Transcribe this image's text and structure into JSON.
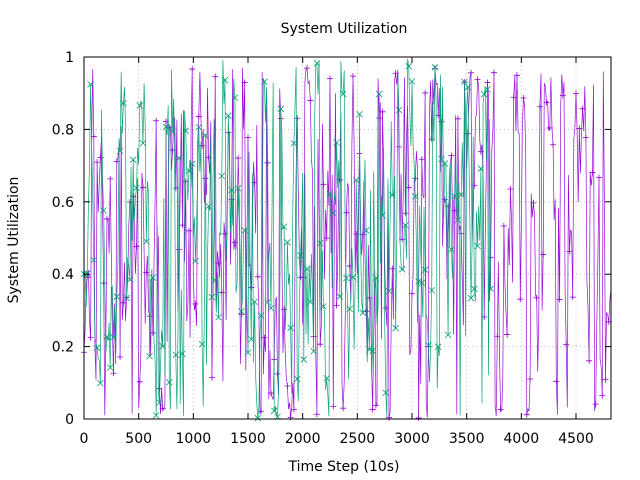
{
  "chart_data": {
    "type": "line",
    "title": "System Utilization",
    "xlabel": "Time Step (10s)",
    "ylabel": "System Utilization",
    "xlim": [
      0,
      4820
    ],
    "ylim": [
      0,
      1
    ],
    "x_ticks": [
      0,
      500,
      1000,
      1500,
      2000,
      2500,
      3000,
      3500,
      4000,
      4500
    ],
    "y_ticks": [
      0,
      0.2,
      0.4,
      0.6,
      0.8,
      1
    ],
    "x_tick_labels": [
      "0",
      "500",
      "1000",
      "1500",
      "2000",
      "2500",
      "3000",
      "3500",
      "4000",
      "4500"
    ],
    "y_tick_labels": [
      "0",
      "0.2",
      "0.4",
      "0.6",
      "0.8",
      "1"
    ],
    "grid": true,
    "legend": "none",
    "series": [
      {
        "color": "#9400D3",
        "marker": "+",
        "x_range": [
          0,
          4820
        ],
        "x_step": 10,
        "y_range_observed": [
          0,
          0.97
        ],
        "note_values": "dense noisy series; values oscillate rapidly between ~0.02 and ~0.95 across the entire range"
      },
      {
        "color": "#009E73",
        "marker": "x",
        "x_range": [
          0,
          3720
        ],
        "x_step": 10,
        "y_range_observed": [
          0,
          1
        ],
        "note_values": "dense noisy series; values oscillate rapidly between 0 and 1; ends near x=3720"
      }
    ]
  }
}
